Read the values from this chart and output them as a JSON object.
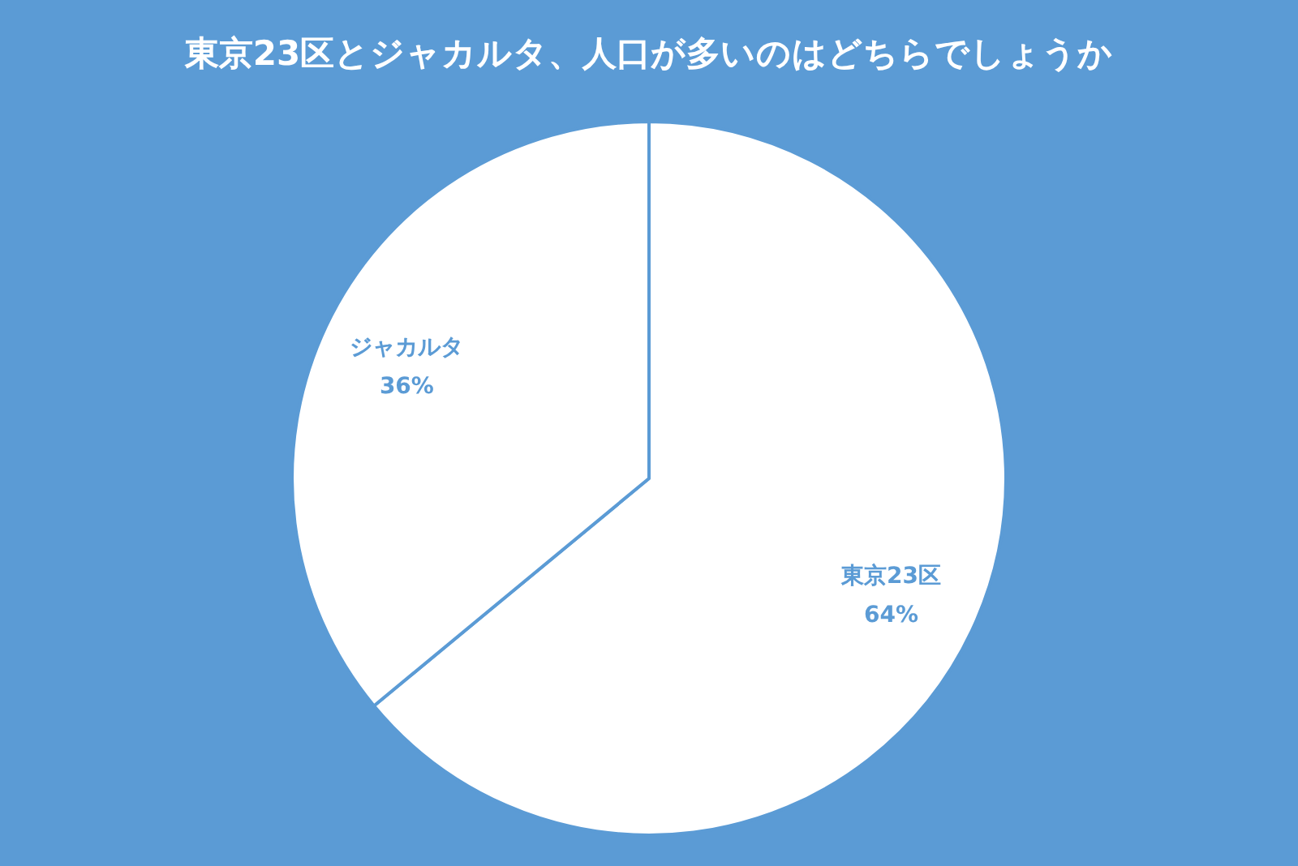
{
  "chart_data": {
    "type": "pie",
    "title": "東京23区とジャカルタ、人口が多いのはどちらでしょうか",
    "categories": [
      "東京23区",
      "ジャカルタ"
    ],
    "values": [
      64,
      36
    ],
    "colors": [
      "#ffffff",
      "#ffffff"
    ],
    "value_labels": [
      "64%",
      "36%"
    ]
  }
}
